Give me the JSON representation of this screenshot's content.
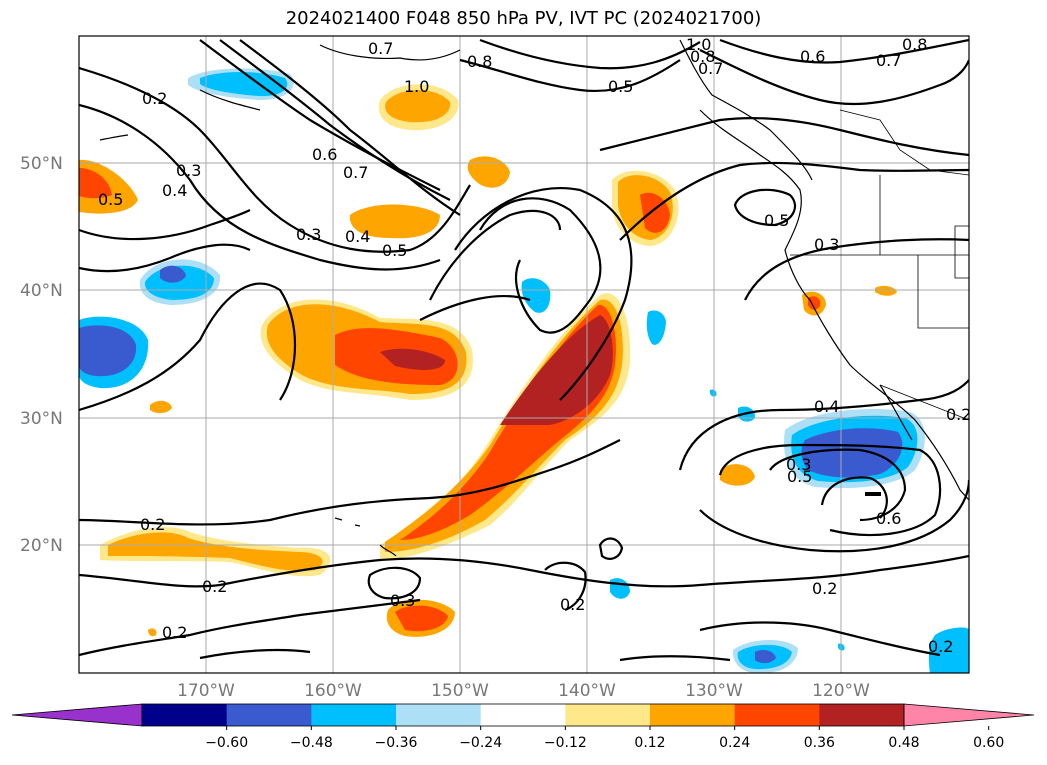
{
  "title": "2024021400 F048 850 hPa PV, IVT PC (2024021700)",
  "lat_labels": [
    "50°N",
    "40°N",
    "30°N",
    "20°N"
  ],
  "lon_labels": [
    "170°W",
    "160°W",
    "150°W",
    "140°W",
    "130°W",
    "120°W"
  ],
  "contour_labels": [
    "0.7",
    "1.0",
    "0.8",
    "0.8",
    "1.0",
    "0.5",
    "0.6",
    "0.7",
    "0.8",
    "0.7",
    "0.2",
    "0.3",
    "0.4",
    "0.5",
    "0.6",
    "0.7",
    "0.3",
    "0.4",
    "0.5",
    "0.5",
    "0.3",
    "0.5",
    "0.2",
    "0.2",
    "0.3",
    "0.2",
    "0.2",
    "0.4",
    "0.6",
    "0.2",
    "0.3",
    "0.2",
    "0.2"
  ],
  "colorbar": {
    "ticks": [
      "−0.60",
      "−0.48",
      "−0.36",
      "−0.24",
      "−0.12",
      "0.12",
      "0.24",
      "0.36",
      "0.48",
      "0.60"
    ],
    "colors": [
      "#9932CC",
      "#00008B",
      "#3A5BD0",
      "#00BFFF",
      "#ADE0F7",
      "#FFFFFF",
      "#FFE88A",
      "#FFA500",
      "#FF4500",
      "#B22222",
      "#FF85A8"
    ]
  },
  "chart_data": {
    "type": "map",
    "title": "2024021400 F048 850 hPa PV, IVT PC (2024021700)",
    "variables": [
      "850 hPa PV (contours)",
      "IVT PC (shaded)"
    ],
    "lon_range": [
      -180,
      -110
    ],
    "lat_range": [
      10,
      60
    ],
    "levels": [
      -0.6,
      -0.48,
      -0.36,
      -0.24,
      -0.12,
      0.12,
      0.24,
      0.36,
      0.48,
      0.6
    ],
    "grid": true
  }
}
